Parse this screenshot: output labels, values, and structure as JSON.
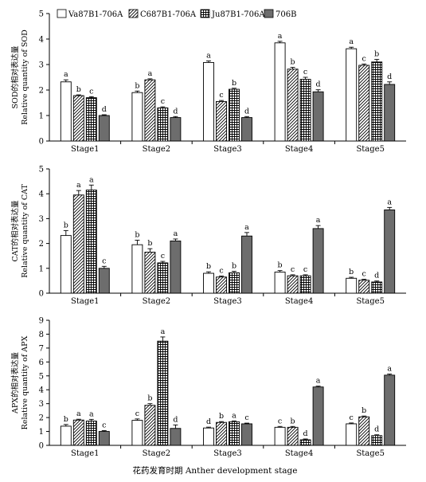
{
  "legend": [
    {
      "label": "Va87B1-706A",
      "pattern": "white"
    },
    {
      "label": "C687B1-706A",
      "pattern": "diag"
    },
    {
      "label": "Ju87B1-706A",
      "pattern": "grid"
    },
    {
      "label": "706B",
      "pattern": "gray"
    }
  ],
  "xlabel": "花药发育时期 Anther development stage",
  "chart_data": [
    {
      "type": "bar",
      "ylabel_cn": "SOD的相对表达量",
      "ylabel_en": "Relative quantity of SOD",
      "categories": [
        "Stage1",
        "Stage2",
        "Stage3",
        "Stage4",
        "Stage5"
      ],
      "ylim": [
        0,
        5
      ],
      "yticks": [
        0,
        1,
        2,
        3,
        4,
        5
      ],
      "series": [
        {
          "name": "Va87B1-706A",
          "values": [
            2.32,
            1.9,
            3.08,
            3.85,
            3.62
          ],
          "errors": [
            0.08,
            0.06,
            0.06,
            0.06,
            0.06
          ],
          "letters": [
            "a",
            "b",
            "a",
            "a",
            "a"
          ]
        },
        {
          "name": "C687B1-706A",
          "values": [
            1.78,
            2.4,
            1.55,
            2.82,
            2.97
          ],
          "errors": [
            0.03,
            0.04,
            0.04,
            0.07,
            0.05
          ],
          "letters": [
            "b",
            "a",
            "c",
            "b",
            "c"
          ]
        },
        {
          "name": "Ju87B1-706A",
          "values": [
            1.7,
            1.3,
            2.03,
            2.42,
            3.1
          ],
          "errors": [
            0.04,
            0.04,
            0.04,
            0.08,
            0.1
          ],
          "letters": [
            "c",
            "c",
            "b",
            "c",
            "b"
          ]
        },
        {
          "name": "706B",
          "values": [
            1.0,
            0.92,
            0.92,
            1.93,
            2.22
          ],
          "errors": [
            0.03,
            0.04,
            0.04,
            0.08,
            0.1
          ],
          "letters": [
            "d",
            "d",
            "d",
            "d",
            "d"
          ]
        }
      ]
    },
    {
      "type": "bar",
      "ylabel_cn": "CAT的相对表达量",
      "ylabel_en": "Relative quantity of CAT",
      "categories": [
        "Stage1",
        "Stage2",
        "Stage3",
        "Stage4",
        "Stage5"
      ],
      "ylim": [
        0,
        5
      ],
      "yticks": [
        0,
        1,
        2,
        3,
        4,
        5
      ],
      "series": [
        {
          "name": "Va87B1-706A",
          "values": [
            2.32,
            1.95,
            0.8,
            0.85,
            0.6
          ],
          "errors": [
            0.2,
            0.18,
            0.06,
            0.06,
            0.04
          ],
          "letters": [
            "b",
            "b",
            "b",
            "b",
            "b"
          ]
        },
        {
          "name": "C687B1-706A",
          "values": [
            3.95,
            1.65,
            0.65,
            0.7,
            0.52
          ],
          "errors": [
            0.18,
            0.14,
            0.04,
            0.04,
            0.04
          ],
          "letters": [
            "a",
            "b",
            "c",
            "c",
            "c"
          ]
        },
        {
          "name": "Ju87B1-706A",
          "values": [
            4.15,
            1.22,
            0.82,
            0.7,
            0.45
          ],
          "errors": [
            0.2,
            0.06,
            0.06,
            0.04,
            0.04
          ],
          "letters": [
            "a",
            "c",
            "b",
            "c",
            "d"
          ]
        },
        {
          "name": "706B",
          "values": [
            1.0,
            2.1,
            2.3,
            2.6,
            3.35
          ],
          "errors": [
            0.08,
            0.08,
            0.14,
            0.12,
            0.1
          ],
          "letters": [
            "c",
            "a",
            "a",
            "a",
            "a"
          ]
        }
      ]
    },
    {
      "type": "bar",
      "ylabel_cn": "APX的相对表达量",
      "ylabel_en": "Relative quantity of APX",
      "categories": [
        "Stage1",
        "Stage2",
        "Stage3",
        "Stage4",
        "Stage5"
      ],
      "ylim": [
        0,
        9
      ],
      "yticks": [
        0,
        1,
        2,
        3,
        4,
        5,
        6,
        7,
        8,
        9
      ],
      "series": [
        {
          "name": "Va87B1-706A",
          "values": [
            1.38,
            1.8,
            1.25,
            1.3,
            1.55
          ],
          "errors": [
            0.12,
            0.1,
            0.06,
            0.06,
            0.06
          ],
          "letters": [
            "b",
            "c",
            "d",
            "c",
            "c"
          ]
        },
        {
          "name": "C687B1-706A",
          "values": [
            1.82,
            2.88,
            1.65,
            1.3,
            2.05
          ],
          "errors": [
            0.06,
            0.12,
            0.06,
            0.06,
            0.06
          ],
          "letters": [
            "a",
            "b",
            "b",
            "b",
            "b"
          ]
        },
        {
          "name": "Ju87B1-706A",
          "values": [
            1.75,
            7.5,
            1.7,
            0.4,
            0.7
          ],
          "errors": [
            0.12,
            0.3,
            0.06,
            0.06,
            0.06
          ],
          "letters": [
            "a",
            "a",
            "a",
            "d",
            "d"
          ]
        },
        {
          "name": "706B",
          "values": [
            1.0,
            1.22,
            1.55,
            4.2,
            5.05
          ],
          "errors": [
            0.06,
            0.25,
            0.05,
            0.06,
            0.08
          ],
          "letters": [
            "c",
            "d",
            "c",
            "a",
            "a"
          ]
        }
      ]
    }
  ]
}
